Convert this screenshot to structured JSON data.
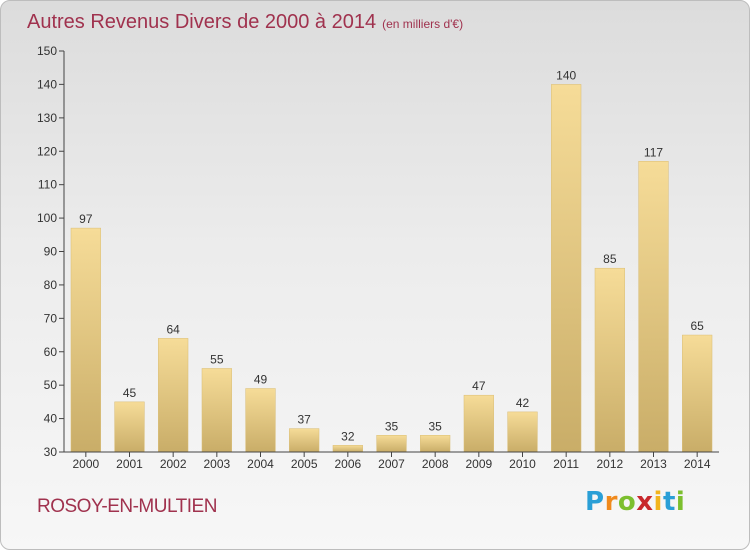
{
  "header": {
    "title": "Autres Revenus Divers de 2000 à 2014",
    "subtitle": "(en milliers d'€)"
  },
  "footer": {
    "place": "ROSOY-EN-MULTIEN",
    "logo_letters": [
      "P",
      "r",
      "o",
      "x",
      "i",
      "t",
      "i"
    ],
    "logo_colors": [
      "#2a9fd6",
      "#f08a1c",
      "#7cbf2e",
      "#c8282c",
      "#f2b41c",
      "#2a9fd6",
      "#7cbf2e"
    ]
  },
  "chart_data": {
    "type": "bar",
    "title": "Autres Revenus Divers de 2000 à 2014",
    "subtitle": "(en milliers d'€)",
    "categories": [
      "2000",
      "2001",
      "2002",
      "2003",
      "2004",
      "2005",
      "2006",
      "2007",
      "2008",
      "2009",
      "2010",
      "2011",
      "2012",
      "2013",
      "2014"
    ],
    "values": [
      97,
      45,
      64,
      55,
      49,
      37,
      32,
      35,
      35,
      47,
      42,
      140,
      85,
      117,
      65
    ],
    "ylim": [
      30,
      150
    ],
    "yticks": [
      30,
      40,
      50,
      60,
      70,
      80,
      90,
      100,
      110,
      120,
      130,
      140,
      150
    ],
    "grid": false,
    "bar_color": "#e6c878"
  }
}
